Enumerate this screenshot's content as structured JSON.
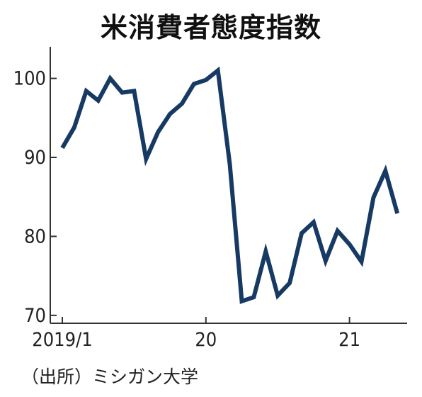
{
  "title": "米消費者態度指数",
  "source": "（出所）ミシガン大学",
  "chart_data": {
    "type": "line",
    "title": "米消費者態度指数",
    "xlabel": "",
    "ylabel": "",
    "ylim": [
      69,
      104
    ],
    "yticks": [
      70,
      80,
      90,
      100
    ],
    "xticks": [
      {
        "label": "2019/1",
        "index": 0
      },
      {
        "label": "20",
        "index": 12
      },
      {
        "label": "21",
        "index": 24
      }
    ],
    "x": [
      "2019/1",
      "2019/2",
      "2019/3",
      "2019/4",
      "2019/5",
      "2019/6",
      "2019/7",
      "2019/8",
      "2019/9",
      "2019/10",
      "2019/11",
      "2019/12",
      "2020/1",
      "2020/2",
      "2020/3",
      "2020/4",
      "2020/5",
      "2020/6",
      "2020/7",
      "2020/8",
      "2020/9",
      "2020/10",
      "2020/11",
      "2020/12",
      "2021/1",
      "2021/2",
      "2021/3",
      "2021/4",
      "2021/5"
    ],
    "series": [
      {
        "name": "",
        "values": [
          91.2,
          93.8,
          98.4,
          97.2,
          100.0,
          98.2,
          98.4,
          89.8,
          93.2,
          95.5,
          96.8,
          99.3,
          99.8,
          101.0,
          89.1,
          71.8,
          72.3,
          78.1,
          72.5,
          74.1,
          80.4,
          81.8,
          76.9,
          80.7,
          79.0,
          76.8,
          84.9,
          88.3,
          82.9
        ],
        "color": "#163a64"
      }
    ],
    "grid": false,
    "legend": "none"
  }
}
